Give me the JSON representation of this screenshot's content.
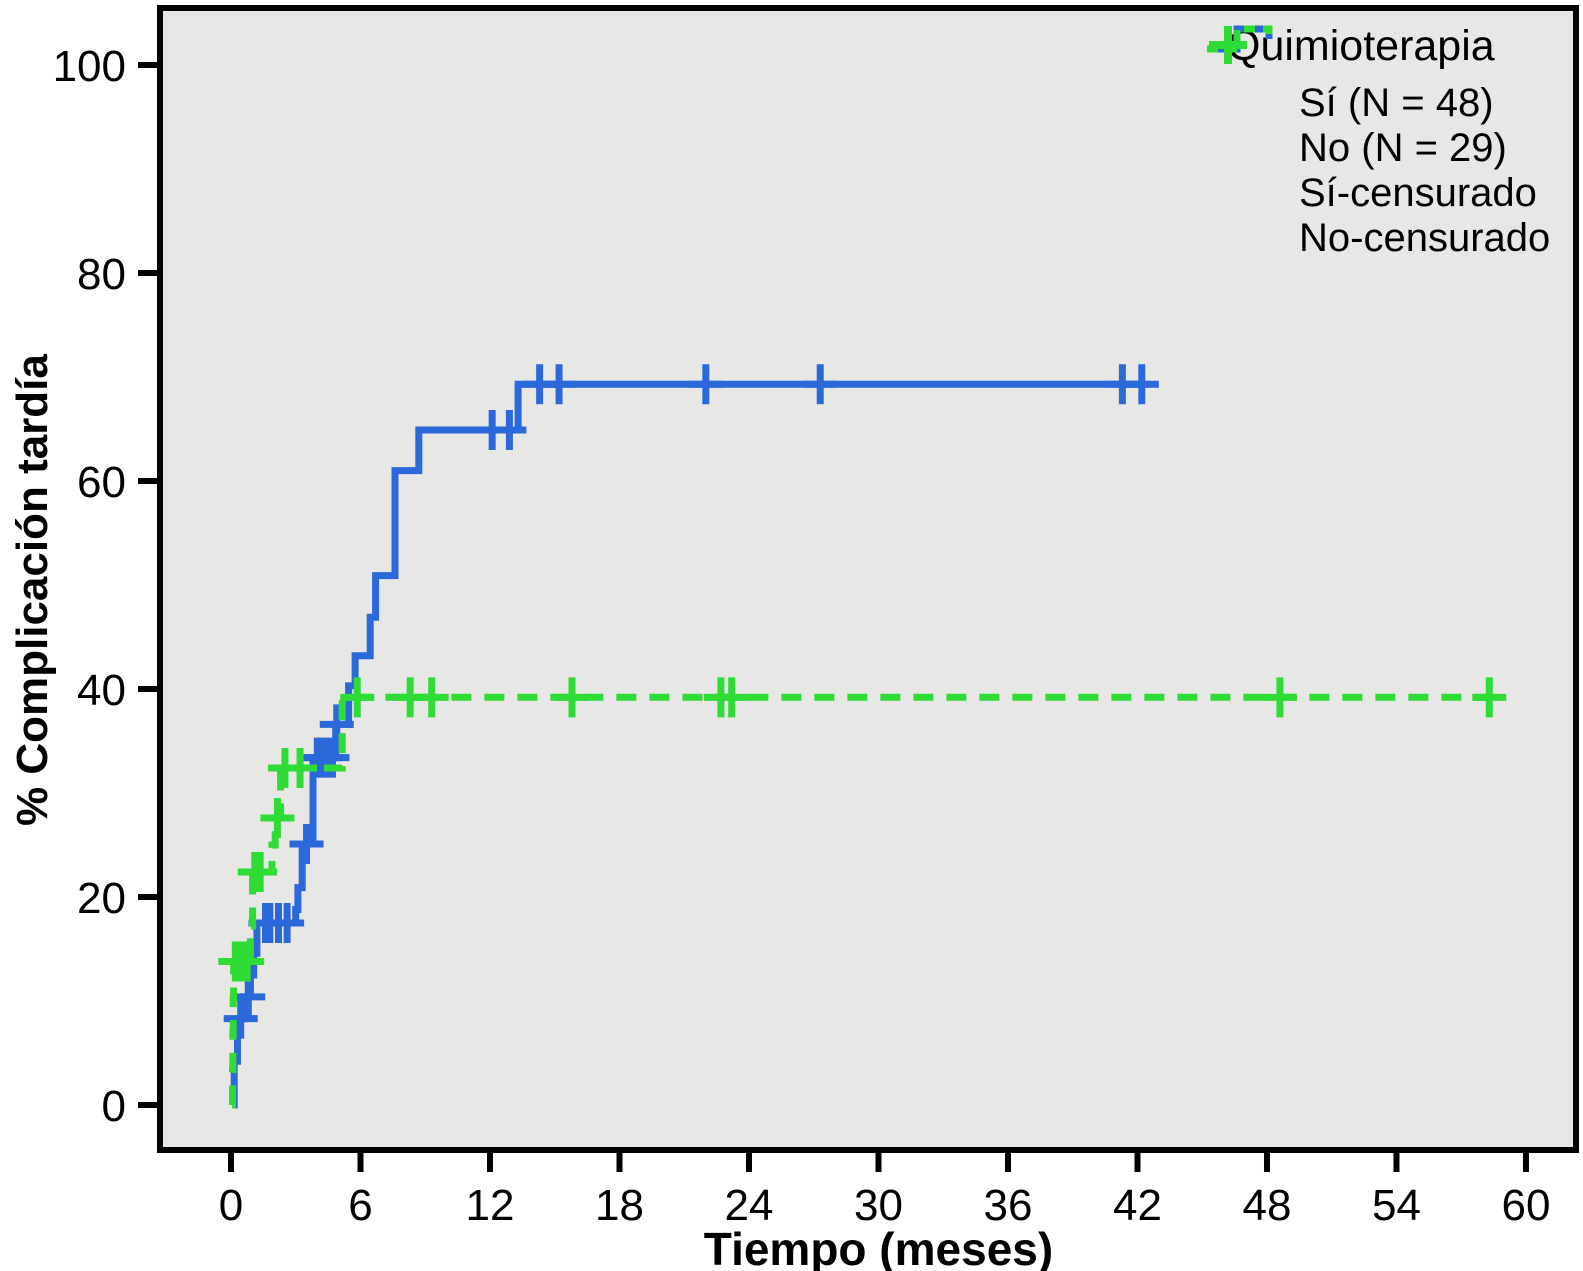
{
  "chart_data": {
    "type": "line",
    "subtype": "kaplan-meier-step",
    "title": "",
    "xlabel": "Tiempo (meses)",
    "ylabel": "% Complicación tardía",
    "legend_title": "Quimioterapia",
    "xlim": [
      0,
      60
    ],
    "ylim": [
      0,
      100
    ],
    "x_ticks": [
      0,
      6,
      12,
      18,
      24,
      30,
      36,
      42,
      48,
      54,
      60
    ],
    "y_ticks": [
      0,
      20,
      40,
      60,
      80,
      100
    ],
    "grid": false,
    "legend_position": "top-right-inside",
    "plot_bg": "#e7e7e6",
    "frame_color": "#000000",
    "series": [
      {
        "name": "Sí (N = 48)",
        "color": "#2b68d9",
        "style": "solid",
        "steps": [
          [
            0.1,
            0
          ],
          [
            0.15,
            4.2
          ],
          [
            0.3,
            8.3
          ],
          [
            0.6,
            10.4
          ],
          [
            0.9,
            12.5
          ],
          [
            1.05,
            14.6
          ],
          [
            1.2,
            17.5
          ],
          [
            3.0,
            18.8
          ],
          [
            3.1,
            20.9
          ],
          [
            3.3,
            25.1
          ],
          [
            3.8,
            33.4
          ],
          [
            4.85,
            36.6
          ],
          [
            5.45,
            40.3
          ],
          [
            5.75,
            43.2
          ],
          [
            6.45,
            46.9
          ],
          [
            6.7,
            50.9
          ],
          [
            7.6,
            61.0
          ],
          [
            8.7,
            64.9
          ],
          [
            13.3,
            69.3
          ]
        ],
        "end_t": 42.6,
        "censored_name": "Sí-censurado",
        "censors": [
          [
            0.45,
            8.3
          ],
          [
            0.8,
            10.4
          ],
          [
            1.6,
            17.5
          ],
          [
            1.8,
            17.5
          ],
          [
            2.2,
            17.5
          ],
          [
            2.6,
            17.5
          ],
          [
            3.5,
            25.1
          ],
          [
            4.0,
            33.4
          ],
          [
            4.2,
            33.4
          ],
          [
            4.4,
            33.4
          ],
          [
            4.7,
            33.4
          ],
          [
            4.9,
            36.6
          ],
          [
            12.1,
            64.9
          ],
          [
            12.9,
            64.9
          ],
          [
            14.3,
            69.3
          ],
          [
            15.2,
            69.3
          ],
          [
            22.0,
            69.3
          ],
          [
            27.3,
            69.3
          ],
          [
            41.3,
            69.3
          ],
          [
            42.2,
            69.3
          ]
        ]
      },
      {
        "name": "No (N = 29)",
        "color": "#2fdc35",
        "style": "dashed",
        "steps": [
          [
            0.05,
            0
          ],
          [
            0.07,
            3.4
          ],
          [
            0.09,
            6.9
          ],
          [
            0.1,
            10.3
          ],
          [
            0.12,
            13.8
          ],
          [
            0.9,
            17.2
          ],
          [
            1.0,
            22.4
          ],
          [
            1.9,
            25.0
          ],
          [
            2.05,
            27.6
          ],
          [
            2.3,
            32.4
          ],
          [
            5.15,
            39.2
          ]
        ],
        "end_t": 58.6,
        "censored_name": "No-censurado",
        "censors": [
          [
            0.2,
            13.8
          ],
          [
            0.45,
            13.8
          ],
          [
            0.75,
            13.8
          ],
          [
            1.1,
            22.4
          ],
          [
            1.35,
            22.4
          ],
          [
            2.15,
            27.6
          ],
          [
            2.5,
            32.4
          ],
          [
            3.2,
            32.4
          ],
          [
            5.85,
            39.2
          ],
          [
            8.3,
            39.2
          ],
          [
            9.3,
            39.2
          ],
          [
            15.8,
            39.2
          ],
          [
            22.7,
            39.2
          ],
          [
            23.2,
            39.2
          ],
          [
            48.6,
            39.2
          ],
          [
            58.3,
            39.2
          ]
        ]
      }
    ],
    "legend_items": [
      {
        "label": "Sí (N = 48)",
        "marker": "step-line",
        "color": "#2b68d9",
        "dashed": false
      },
      {
        "label": "No (N = 29)",
        "marker": "step-line",
        "color": "#2fdc35",
        "dashed": true
      },
      {
        "label": "Sí-censurado",
        "marker": "plus",
        "color": "#2b68d9",
        "dashed": false
      },
      {
        "label": "No-censurado",
        "marker": "plus",
        "color": "#2fdc35",
        "dashed": false
      }
    ]
  }
}
